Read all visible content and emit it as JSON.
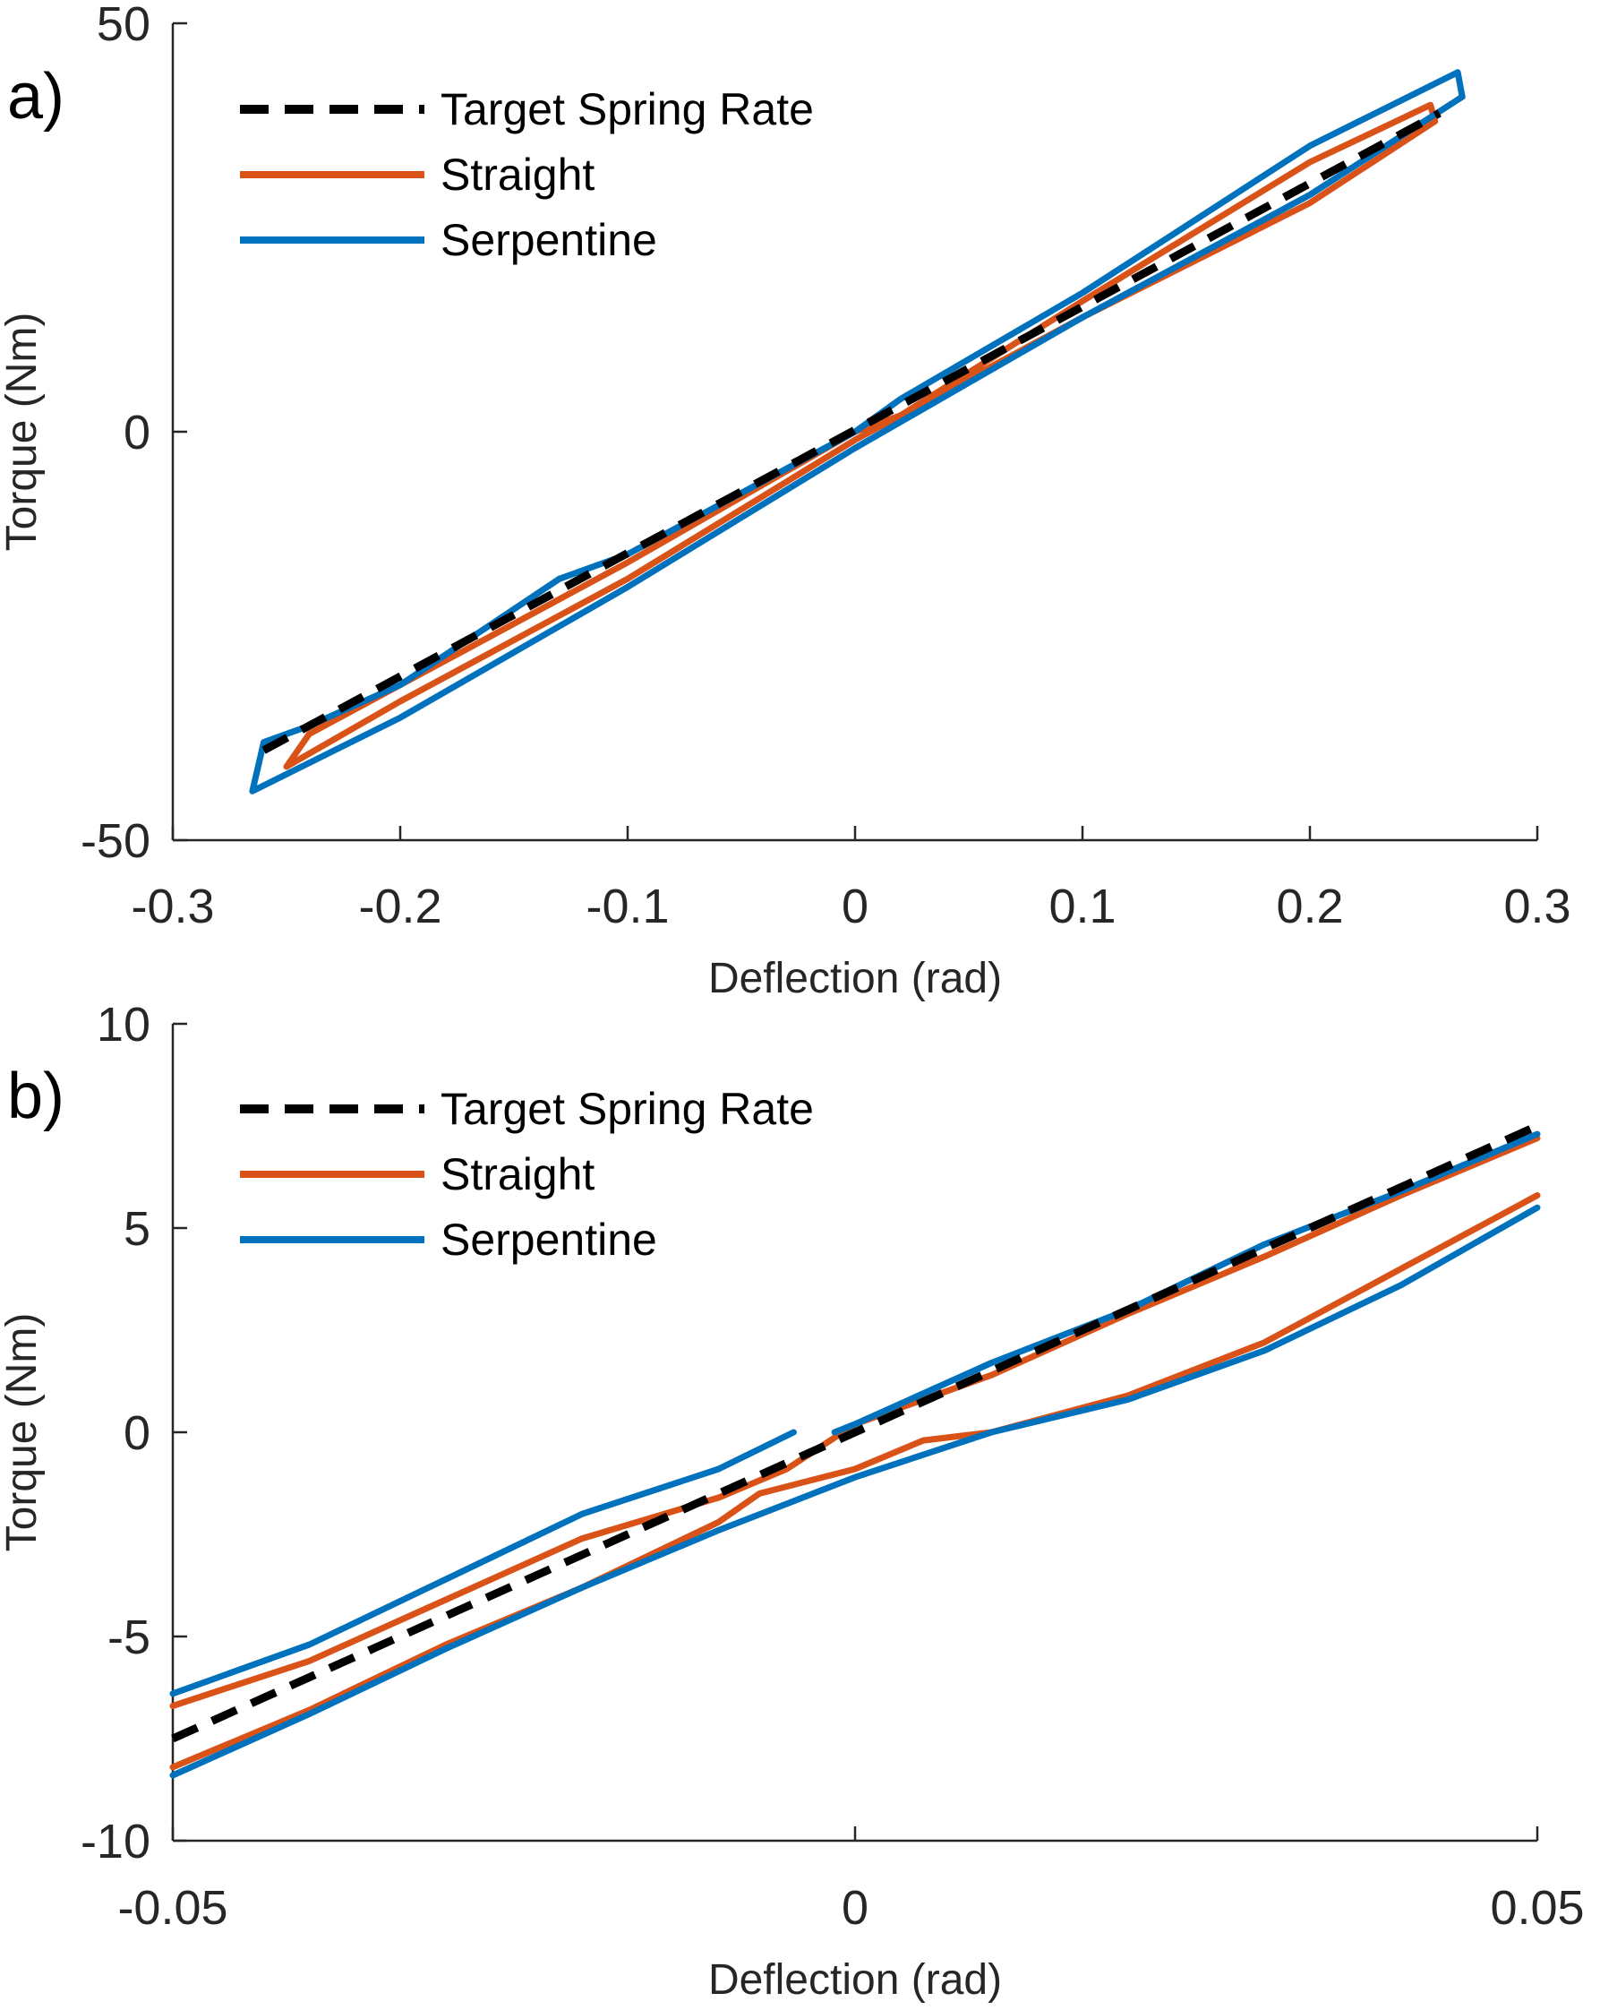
{
  "chart_data": [
    {
      "type": "line",
      "panel_label": "a)",
      "xlabel": "Deflection (rad)",
      "ylabel": "Torque (Nm)",
      "xlim": [
        -0.3,
        0.3
      ],
      "ylim": [
        -50,
        50
      ],
      "xticks": [
        -0.3,
        -0.2,
        -0.1,
        0,
        0.1,
        0.2,
        0.3
      ],
      "xtick_labels": [
        "-0.3",
        "-0.2",
        "-0.1",
        "0",
        "0.1",
        "0.2",
        "0.3"
      ],
      "yticks": [
        -50,
        0,
        50
      ],
      "ytick_labels": [
        "-50",
        "0",
        "50"
      ],
      "grid": false,
      "legend_position": "top-left",
      "series": [
        {
          "name": "Target Spring Rate",
          "color": "#000000",
          "style": "dashed",
          "x": [
            -0.26,
            0.257
          ],
          "y": [
            -39,
            39
          ]
        },
        {
          "name": "Straight",
          "color": "#D95319",
          "style": "solid",
          "x": [
            -0.25,
            -0.2,
            -0.1,
            0,
            0.1,
            0.2,
            0.255,
            0.253,
            0.2,
            0.1,
            0.02,
            0,
            -0.1,
            -0.2,
            -0.24,
            -0.25
          ],
          "y": [
            -41,
            -33,
            -18,
            -1,
            14,
            28,
            38,
            40,
            33,
            16,
            2,
            0,
            -16,
            -31,
            -37,
            -41
          ]
        },
        {
          "name": "Serpentine",
          "color": "#0072BD",
          "style": "solid",
          "x": [
            -0.265,
            -0.2,
            -0.1,
            0,
            0.1,
            0.2,
            0.267,
            0.265,
            0.2,
            0.1,
            0.02,
            0,
            -0.1,
            -0.13,
            -0.2,
            -0.24,
            -0.26,
            -0.265
          ],
          "y": [
            -44,
            -35,
            -19,
            -2,
            14,
            29,
            41,
            44,
            35,
            17,
            4,
            0,
            -15,
            -18,
            -31,
            -36,
            -38,
            -44
          ]
        }
      ]
    },
    {
      "type": "line",
      "panel_label": "b)",
      "xlabel": "Deflection (rad)",
      "ylabel": "Torque (Nm)",
      "xlim": [
        -0.05,
        0.05
      ],
      "ylim": [
        -10,
        10
      ],
      "xticks": [
        -0.05,
        0,
        0.05
      ],
      "xtick_labels": [
        "-0.05",
        "0",
        "0.05"
      ],
      "yticks": [
        -10,
        -5,
        0,
        5,
        10
      ],
      "ytick_labels": [
        "-10",
        "-5",
        "0",
        "5",
        "10"
      ],
      "grid": false,
      "legend_position": "top-left",
      "series": [
        {
          "name": "Target Spring Rate",
          "color": "#000000",
          "style": "dashed",
          "x": [
            -0.05,
            0.05
          ],
          "y": [
            -7.5,
            7.5
          ]
        },
        {
          "name": "Straight",
          "color": "#D95319",
          "style": "solid",
          "segments": [
            {
              "x": [
                -0.05,
                -0.04,
                -0.03,
                -0.02,
                -0.01,
                -0.005,
                0,
                0.01,
                0.02,
                0.03,
                0.04,
                0.05
              ],
              "y": [
                -6.7,
                -5.6,
                -4.1,
                -2.6,
                -1.6,
                -0.9,
                0.2,
                1.4,
                2.9,
                4.3,
                5.8,
                7.2
              ]
            },
            {
              "x": [
                -0.05,
                -0.04,
                -0.03,
                -0.02,
                -0.01,
                -0.007,
                0,
                0.005,
                0.01,
                0.02,
                0.03,
                0.04,
                0.05
              ],
              "y": [
                -8.2,
                -6.8,
                -5.2,
                -3.8,
                -2.2,
                -1.5,
                -0.9,
                -0.2,
                0,
                0.9,
                2.2,
                4.0,
                5.8
              ]
            }
          ]
        },
        {
          "name": "Serpentine",
          "color": "#0072BD",
          "style": "solid",
          "segments": [
            {
              "x": [
                -0.05,
                -0.04,
                -0.03,
                -0.02,
                -0.01,
                -0.0045
              ],
              "y": [
                -6.4,
                -5.2,
                -3.6,
                -2.0,
                -0.9,
                0.0
              ]
            },
            {
              "x": [
                -0.0015,
                0,
                0.01,
                0.02,
                0.03,
                0.04,
                0.05
              ],
              "y": [
                0.0,
                0.2,
                1.7,
                3.0,
                4.6,
                5.9,
                7.3
              ]
            },
            {
              "x": [
                -0.05,
                -0.04,
                -0.03,
                -0.02,
                -0.01,
                0,
                0.01,
                0.02,
                0.03,
                0.04,
                0.05
              ],
              "y": [
                -8.4,
                -6.9,
                -5.3,
                -3.8,
                -2.4,
                -1.1,
                0.0,
                0.8,
                2.0,
                3.6,
                5.5
              ]
            }
          ]
        }
      ]
    }
  ]
}
